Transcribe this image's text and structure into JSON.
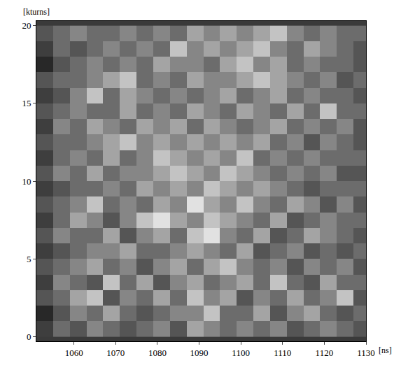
{
  "chart_data": {
    "type": "heatmap",
    "xlabel": "[ns]",
    "ylabel": "[kturns]",
    "xlim": [
      1051,
      1130
    ],
    "ylim": [
      -0.3,
      20.3
    ],
    "xticks": [
      1060,
      1070,
      1080,
      1090,
      1100,
      1110,
      1120,
      1130
    ],
    "yticks": [
      0,
      5,
      10,
      15,
      20
    ],
    "zlim": [
      0,
      9
    ],
    "x": [
      1053,
      1057,
      1061,
      1065,
      1069,
      1073,
      1077,
      1081,
      1085,
      1089,
      1093,
      1097,
      1101,
      1105,
      1109,
      1113,
      1117,
      1121,
      1125,
      1129
    ],
    "y": [
      0.5,
      1.5,
      2.5,
      3.5,
      4.5,
      5.5,
      6.5,
      7.5,
      8.5,
      9.5,
      10.5,
      11.5,
      12.5,
      13.5,
      14.5,
      15.5,
      16.5,
      17.5,
      18.5,
      19.5
    ],
    "z": [
      [
        2,
        4,
        3,
        5,
        4,
        3,
        4,
        5,
        3,
        6,
        5,
        4,
        5,
        4,
        5,
        3,
        4,
        5,
        4,
        3
      ],
      [
        1,
        3,
        5,
        4,
        6,
        4,
        3,
        4,
        5,
        5,
        7,
        4,
        4,
        6,
        3,
        5,
        6,
        4,
        3,
        4
      ],
      [
        3,
        4,
        6,
        7,
        3,
        5,
        4,
        6,
        4,
        7,
        5,
        6,
        3,
        5,
        4,
        6,
        4,
        5,
        7,
        3
      ],
      [
        2,
        5,
        4,
        3,
        7,
        4,
        6,
        3,
        5,
        6,
        4,
        5,
        6,
        4,
        7,
        4,
        3,
        6,
        4,
        4
      ],
      [
        3,
        4,
        5,
        6,
        4,
        5,
        3,
        5,
        6,
        4,
        6,
        7,
        5,
        4,
        5,
        3,
        5,
        4,
        5,
        3
      ],
      [
        2,
        3,
        4,
        5,
        5,
        6,
        4,
        4,
        5,
        6,
        5,
        4,
        6,
        3,
        4,
        5,
        3,
        4,
        3,
        4
      ],
      [
        3,
        5,
        4,
        4,
        6,
        3,
        5,
        6,
        4,
        7,
        8,
        5,
        4,
        6,
        3,
        4,
        6,
        5,
        4,
        3
      ],
      [
        2,
        4,
        6,
        5,
        3,
        5,
        7,
        8,
        6,
        5,
        7,
        6,
        5,
        4,
        6,
        3,
        4,
        5,
        4,
        4
      ],
      [
        3,
        4,
        5,
        7,
        4,
        5,
        4,
        6,
        5,
        8,
        6,
        5,
        7,
        5,
        4,
        6,
        5,
        3,
        5,
        3
      ],
      [
        2,
        3,
        4,
        4,
        5,
        4,
        6,
        5,
        6,
        5,
        7,
        6,
        5,
        6,
        5,
        4,
        3,
        4,
        4,
        4
      ],
      [
        3,
        5,
        4,
        6,
        4,
        5,
        5,
        6,
        7,
        6,
        5,
        7,
        6,
        5,
        4,
        5,
        4,
        5,
        3,
        3
      ],
      [
        2,
        4,
        5,
        4,
        6,
        4,
        5,
        7,
        6,
        5,
        6,
        5,
        7,
        4,
        5,
        4,
        5,
        4,
        4,
        4
      ],
      [
        3,
        4,
        4,
        5,
        6,
        7,
        5,
        6,
        5,
        6,
        5,
        6,
        5,
        6,
        4,
        5,
        3,
        5,
        4,
        3
      ],
      [
        2,
        5,
        4,
        6,
        5,
        4,
        6,
        5,
        6,
        4,
        6,
        5,
        4,
        5,
        6,
        4,
        5,
        4,
        5,
        3
      ],
      [
        3,
        4,
        5,
        4,
        4,
        6,
        4,
        5,
        4,
        6,
        5,
        4,
        6,
        5,
        4,
        6,
        4,
        7,
        4,
        4
      ],
      [
        2,
        3,
        5,
        7,
        4,
        6,
        5,
        4,
        5,
        4,
        5,
        6,
        4,
        5,
        6,
        4,
        5,
        4,
        4,
        3
      ],
      [
        3,
        4,
        4,
        5,
        6,
        7,
        4,
        5,
        4,
        6,
        5,
        5,
        6,
        7,
        6,
        5,
        4,
        5,
        3,
        4
      ],
      [
        1,
        3,
        4,
        5,
        4,
        5,
        4,
        6,
        5,
        5,
        4,
        6,
        7,
        5,
        6,
        4,
        5,
        4,
        4,
        3
      ],
      [
        2,
        4,
        3,
        4,
        5,
        4,
        5,
        4,
        7,
        5,
        6,
        5,
        6,
        7,
        5,
        4,
        6,
        5,
        4,
        3
      ],
      [
        3,
        4,
        5,
        4,
        4,
        5,
        4,
        5,
        4,
        6,
        5,
        6,
        5,
        6,
        7,
        5,
        4,
        5,
        4,
        4
      ]
    ]
  }
}
